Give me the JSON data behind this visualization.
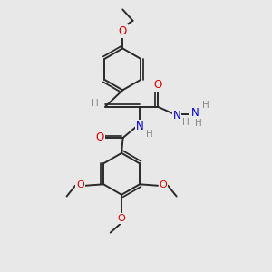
{
  "bg_color": "#e8e8e8",
  "bond_color": "#2a2a2a",
  "oxygen_color": "#dd0000",
  "nitrogen_color": "#0000cc",
  "hydrogen_color": "#888888",
  "bond_width": 1.4,
  "figsize": [
    3.0,
    3.0
  ],
  "dpi": 100,
  "xlim": [
    0,
    10
  ],
  "ylim": [
    0,
    10
  ]
}
